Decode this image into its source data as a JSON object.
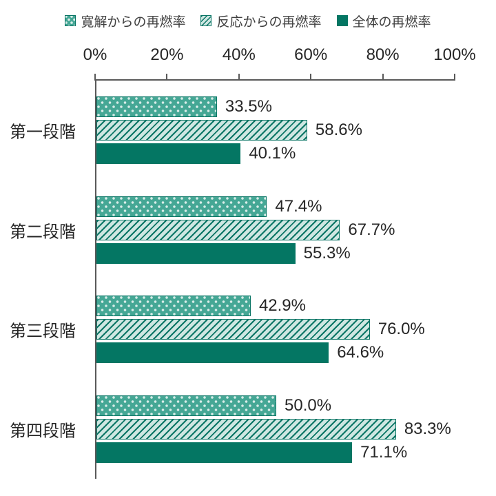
{
  "chart_data": {
    "type": "bar",
    "orientation": "horizontal",
    "categories": [
      "第一段階",
      "第二段階",
      "第三段階",
      "第四段階"
    ],
    "series": [
      {
        "name": "寛解からの再燃率",
        "pattern": "dots",
        "values": [
          33.5,
          47.4,
          42.9,
          50.0
        ],
        "labels": [
          "33.5%",
          "47.4%",
          "42.9%",
          "50.0%"
        ]
      },
      {
        "name": "反応からの再燃率",
        "pattern": "stripes",
        "values": [
          58.6,
          67.7,
          76.0,
          83.3
        ],
        "labels": [
          "58.6%",
          "67.7%",
          "76.0%",
          "83.3%"
        ]
      },
      {
        "name": "全体の再燃率",
        "pattern": "solid",
        "values": [
          40.1,
          55.3,
          64.6,
          71.1
        ],
        "labels": [
          "40.1%",
          "55.3%",
          "64.6%",
          "71.1%"
        ]
      }
    ],
    "x_axis": {
      "min": 0,
      "max": 100,
      "ticks": [
        "0%",
        "20%",
        "40%",
        "60%",
        "80%",
        "100%"
      ]
    },
    "legend_position": "top",
    "grid": false,
    "value_labels_shown": true,
    "colors": {
      "solid_teal": "#047663",
      "pattern_line_teal": "#0a7565",
      "dots_background": "#45a795",
      "dots_dot": "#d9ece8",
      "stripes_background": "#cfe7e2",
      "axis_line": "#595959",
      "text": "#262626"
    }
  }
}
